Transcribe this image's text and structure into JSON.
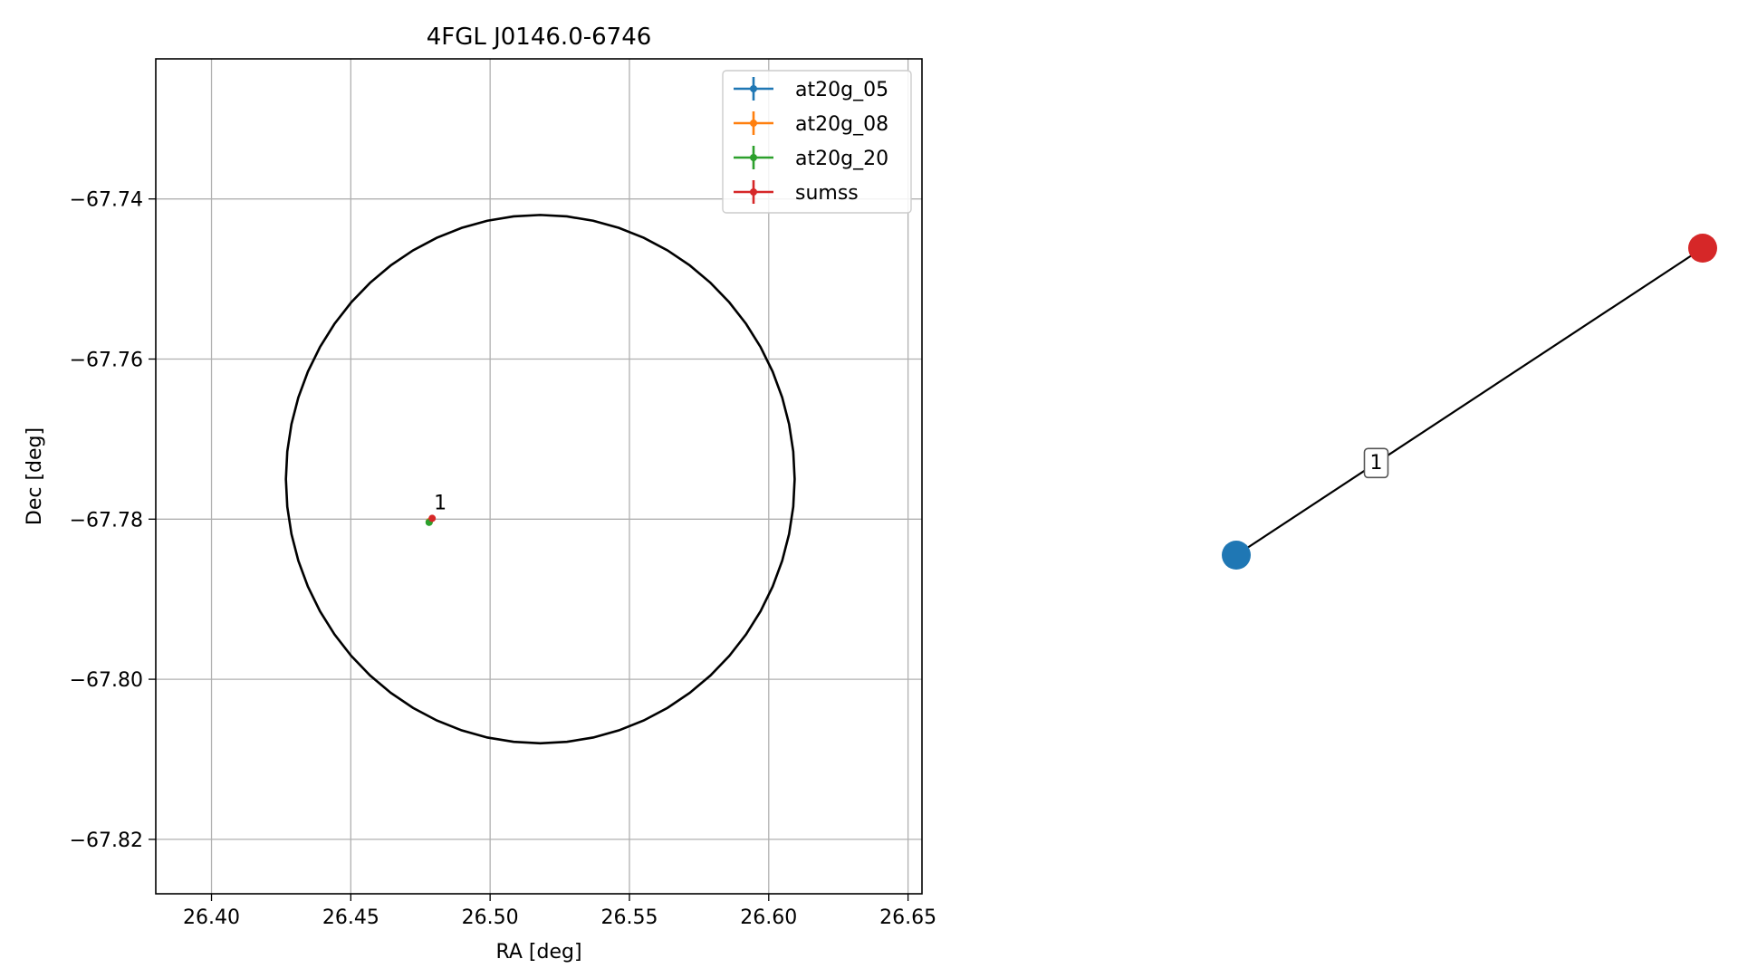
{
  "chart_data": [
    {
      "type": "scatter",
      "title": "4FGL J0146.0-6746",
      "xlabel": "RA [deg]",
      "ylabel": "Dec [deg]",
      "xlim": [
        26.38,
        26.655
      ],
      "ylim": [
        -67.8268,
        -67.7225
      ],
      "xticks": [
        26.4,
        26.45,
        26.5,
        26.55,
        26.6,
        26.65
      ],
      "xtick_labels": [
        "26.40",
        "26.45",
        "26.50",
        "26.55",
        "26.60",
        "26.65"
      ],
      "yticks": [
        -67.74,
        -67.76,
        -67.78,
        -67.8,
        -67.82
      ],
      "ytick_labels": [
        "−67.74",
        "−67.76",
        "−67.78",
        "−67.80",
        "−67.82"
      ],
      "grid": true,
      "legend_position": "top-right",
      "series": [
        {
          "name": "at20g_05",
          "color": "#1f77b4",
          "points": [
            {
              "x": 26.4782,
              "y": -67.7803
            }
          ]
        },
        {
          "name": "at20g_08",
          "color": "#ff7f0e",
          "points": [
            {
              "x": 26.4782,
              "y": -67.7803
            }
          ]
        },
        {
          "name": "at20g_20",
          "color": "#2ca02c",
          "points": [
            {
              "x": 26.4781,
              "y": -67.7804
            }
          ]
        },
        {
          "name": "sumss",
          "color": "#d62728",
          "points": [
            {
              "x": 26.4792,
              "y": -67.7799
            }
          ]
        }
      ],
      "ellipse": {
        "center_ra": 26.518,
        "center_dec": -67.775,
        "ra_radius": 0.0913,
        "dec_radius": 0.033,
        "color": "#000000"
      },
      "annotations": [
        {
          "text": "1",
          "x": 26.4795,
          "y": -67.779
        }
      ]
    },
    {
      "type": "network",
      "nodes": [
        {
          "id": "blue",
          "color": "#1f77b4",
          "pos": [
            0.0,
            0.0
          ]
        },
        {
          "id": "red",
          "color": "#d62728",
          "pos": [
            1.0,
            1.0
          ]
        }
      ],
      "edges": [
        {
          "from": "blue",
          "to": "red",
          "label": "1"
        }
      ]
    }
  ]
}
